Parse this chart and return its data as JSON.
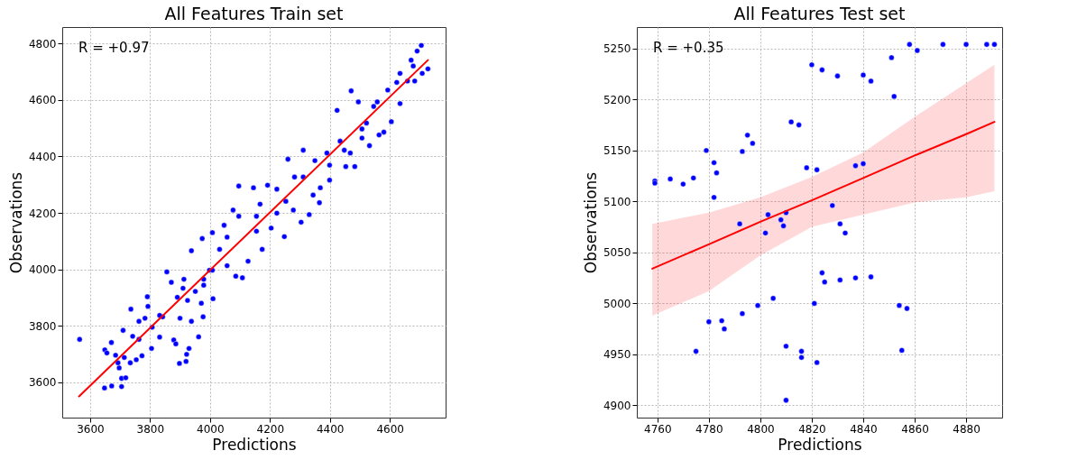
{
  "chart_data": [
    {
      "type": "scatter",
      "title": "All Features Train set",
      "xlabel": "Predictions",
      "ylabel": "Observations",
      "xlim": [
        3507,
        4786
      ],
      "ylim": [
        3475,
        4858
      ],
      "xticks": [
        3600,
        3800,
        4000,
        4200,
        4400,
        4600
      ],
      "yticks": [
        3600,
        3800,
        4000,
        4200,
        4400,
        4600,
        4800
      ],
      "grid": true,
      "annotations": [
        "R = +0.97"
      ],
      "series": [
        {
          "color": "#0000ff",
          "marker": "circle",
          "x": [
            3565,
            3648,
            3672,
            3705,
            3649,
            3656,
            3671,
            3685,
            3697,
            3705,
            3719,
            3693,
            3710,
            3736,
            3734,
            3754,
            3773,
            3742,
            3763,
            3783,
            3793,
            3791,
            3807,
            3805,
            3832,
            3842,
            3856,
            3871,
            3879,
            3886,
            3898,
            3920,
            3930,
            3922,
            3900,
            3891,
            3913,
            3925,
            3938,
            3962,
            3951,
            3977,
            3971,
            3979,
            3979,
            3998,
            4010,
            3938,
            3974,
            4008,
            4032,
            4047,
            4057,
            4086,
            4108,
            4077,
            4096,
            4096,
            4127,
            4145,
            4167,
            4174,
            4155,
            4192,
            4204,
            4223,
            4223,
            4248,
            4260,
            4278,
            4282,
            4304,
            4311,
            4331,
            4344,
            4365,
            4368,
            4350,
            4390,
            4399,
            4424,
            4434,
            4453,
            4468,
            4471,
            4495,
            4483,
            4507,
            4522,
            4532,
            4546,
            4558,
            4564,
            4580,
            4593,
            4605,
            4623,
            4634,
            4634,
            4659,
            4671,
            4678,
            4691,
            4705,
            4727,
            4708,
            4683,
            4399,
            4448,
            4507,
            4311,
            4253,
            4155,
            4057,
            4008,
            3910,
            3832,
            3763,
            3714
          ],
          "values": [
            3752,
            3580,
            3587,
            3585,
            3715,
            3704,
            3741,
            3696,
            3651,
            3614,
            3616,
            3669,
            3784,
            3859,
            3669,
            3680,
            3694,
            3763,
            3816,
            3827,
            3869,
            3903,
            3795,
            3720,
            3760,
            3832,
            3991,
            3954,
            3750,
            3736,
            3667,
            3674,
            3720,
            3699,
            3827,
            3901,
            3965,
            3890,
            3816,
            3761,
            3922,
            3832,
            3880,
            3944,
            3965,
            3997,
            3896,
            4066,
            4109,
            4130,
            4071,
            4156,
            4013,
            3976,
            3970,
            4210,
            4295,
            4188,
            4029,
            4289,
            4231,
            4071,
            4135,
            4298,
            4146,
            4284,
            4199,
            4116,
            4390,
            4210,
            4327,
            4167,
            4422,
            4194,
            4263,
            4236,
            4289,
            4385,
            4412,
            4316,
            4563,
            4454,
            4364,
            4412,
            4632,
            4593,
            4364,
            4465,
            4518,
            4438,
            4577,
            4593,
            4476,
            4486,
            4635,
            4523,
            4662,
            4587,
            4694,
            4667,
            4741,
            4720,
            4773,
            4793,
            4710,
            4694,
            4667,
            4369,
            4422,
            4497,
            4327,
            4241,
            4188,
            4114,
            3997,
            3933,
            3837,
            3752,
            3688
          ]
        },
        {
          "type": "line",
          "color": "#ff0000",
          "x": [
            3563,
            4727
          ],
          "values": [
            3550,
            4741
          ]
        }
      ]
    },
    {
      "type": "scatter",
      "title": "All Features Test set",
      "xlabel": "Predictions",
      "ylabel": "Observations",
      "xlim": [
        4752,
        4894
      ],
      "ylim": [
        4888,
        5271
      ],
      "xticks": [
        4760,
        4780,
        4800,
        4820,
        4840,
        4860,
        4880
      ],
      "yticks": [
        4900,
        4950,
        5000,
        5050,
        5100,
        5150,
        5200,
        5250
      ],
      "grid": true,
      "annotations": [
        "R = +0.35"
      ],
      "series": [
        {
          "color": "#0000ff",
          "marker": "circle",
          "x": [
            4759,
            4759,
            4765,
            4770,
            4774,
            4779,
            4782,
            4783,
            4782,
            4792,
            4793,
            4795,
            4797,
            4802,
            4803,
            4808,
            4809,
            4810,
            4812,
            4815,
            4818,
            4820,
            4821,
            4822,
            4822,
            4780,
            4785,
            4786,
            4793,
            4799,
            4805,
            4775,
            4810,
            4816,
            4816,
            4810,
            4824,
            4830,
            4840,
            4843,
            4851,
            4852,
            4858,
            4861,
            4871,
            4880,
            4888,
            4891,
            4837,
            4840,
            4828,
            4831,
            4833,
            4824,
            4825,
            4831,
            4837,
            4843,
            4854,
            4857,
            4855
          ],
          "values": [
            5120,
            5118,
            5122,
            5117,
            5123,
            5150,
            5138,
            5128,
            5104,
            5078,
            5149,
            5165,
            5157,
            5069,
            5087,
            5082,
            5076,
            5089,
            5178,
            5175,
            5133,
            5234,
            5000,
            5131,
            4942,
            4982,
            4983,
            4975,
            4990,
            4998,
            5005,
            4953,
            4958,
            4953,
            4947,
            4905,
            5229,
            5223,
            5224,
            5218,
            5241,
            5203,
            5254,
            5248,
            5254,
            5254,
            5254,
            5254,
            5135,
            5137,
            5096,
            5078,
            5069,
            5030,
            5021,
            5023,
            5025,
            5026,
            4998,
            4995,
            4954
          ]
        },
        {
          "type": "line",
          "color": "#ff0000",
          "x": [
            4758,
            4780,
            4800,
            4820,
            4840,
            4860,
            4880,
            4891
          ],
          "values": [
            5034,
            5058,
            5080,
            5101,
            5123,
            5145,
            5166,
            5178
          ],
          "lower": [
            4988,
            5012,
            5047,
            5075,
            5087,
            5099,
            5104,
            5110
          ],
          "upper": [
            5078,
            5089,
            5104,
            5124,
            5148,
            5183,
            5216,
            5234
          ]
        }
      ]
    }
  ]
}
